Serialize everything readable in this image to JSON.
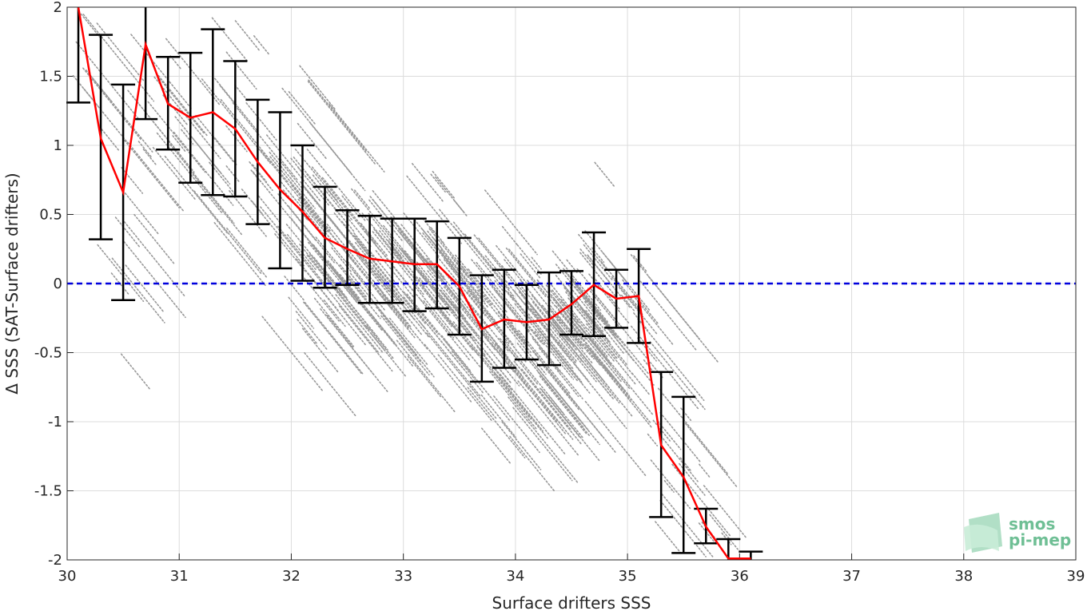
{
  "chart_data": {
    "type": "scatter",
    "xlabel": "Surface drifters SSS",
    "ylabel": "Δ SSS (SAT-Surface drifters)",
    "xlim": [
      30,
      39
    ],
    "ylim": [
      -2,
      2
    ],
    "xticks": [
      "30",
      "31",
      "32",
      "33",
      "34",
      "35",
      "36",
      "37",
      "38",
      "39"
    ],
    "yticks": [
      "2",
      "1.5",
      "1",
      "0.5",
      "0",
      "-0.5",
      "-1",
      "-1.5",
      "-2"
    ],
    "grid": true,
    "colors": {
      "scatter": "#999999",
      "mean_line": "#ff0000",
      "zero_line": "#0000dd",
      "error_bars": "#000000"
    },
    "zero_line_y": 0,
    "mean_binned": {
      "x": [
        30.1,
        30.3,
        30.5,
        30.7,
        30.9,
        31.1,
        31.3,
        31.5,
        31.7,
        31.9,
        32.1,
        32.3,
        32.5,
        32.7,
        32.9,
        33.1,
        33.3,
        33.5,
        33.7,
        33.9,
        34.1,
        34.3,
        34.5,
        34.7,
        34.9,
        35.1,
        35.3,
        35.5,
        35.7,
        35.9,
        36.1
      ],
      "mean": [
        2.0,
        1.05,
        0.66,
        1.73,
        1.3,
        1.2,
        1.24,
        1.12,
        0.88,
        0.68,
        0.52,
        0.33,
        0.25,
        0.18,
        0.16,
        0.14,
        0.14,
        -0.02,
        -0.33,
        -0.26,
        -0.28,
        -0.26,
        -0.15,
        -0.01,
        -0.11,
        -0.09,
        -1.17,
        -1.4,
        -1.76,
        -1.99,
        -1.99
      ],
      "upper": [
        2.0,
        1.8,
        1.44,
        2.0,
        1.64,
        1.67,
        1.84,
        1.61,
        1.33,
        1.24,
        1.0,
        0.7,
        0.53,
        0.49,
        0.47,
        0.47,
        0.45,
        0.33,
        0.06,
        0.1,
        -0.01,
        0.08,
        0.09,
        0.37,
        0.1,
        0.25,
        -0.64,
        -0.82,
        -1.63,
        -1.85,
        -1.94
      ],
      "lower": [
        1.31,
        0.32,
        -0.12,
        1.19,
        0.97,
        0.73,
        0.64,
        0.63,
        0.43,
        0.11,
        0.02,
        -0.03,
        -0.01,
        -0.14,
        -0.14,
        -0.2,
        -0.18,
        -0.37,
        -0.71,
        -0.61,
        -0.55,
        -0.59,
        -0.37,
        -0.38,
        -0.32,
        -0.43,
        -1.69,
        -1.95,
        -1.88,
        -2.0,
        -2.0
      ]
    }
  },
  "logo": {
    "line1": "smos",
    "line2": "pi-mep"
  }
}
